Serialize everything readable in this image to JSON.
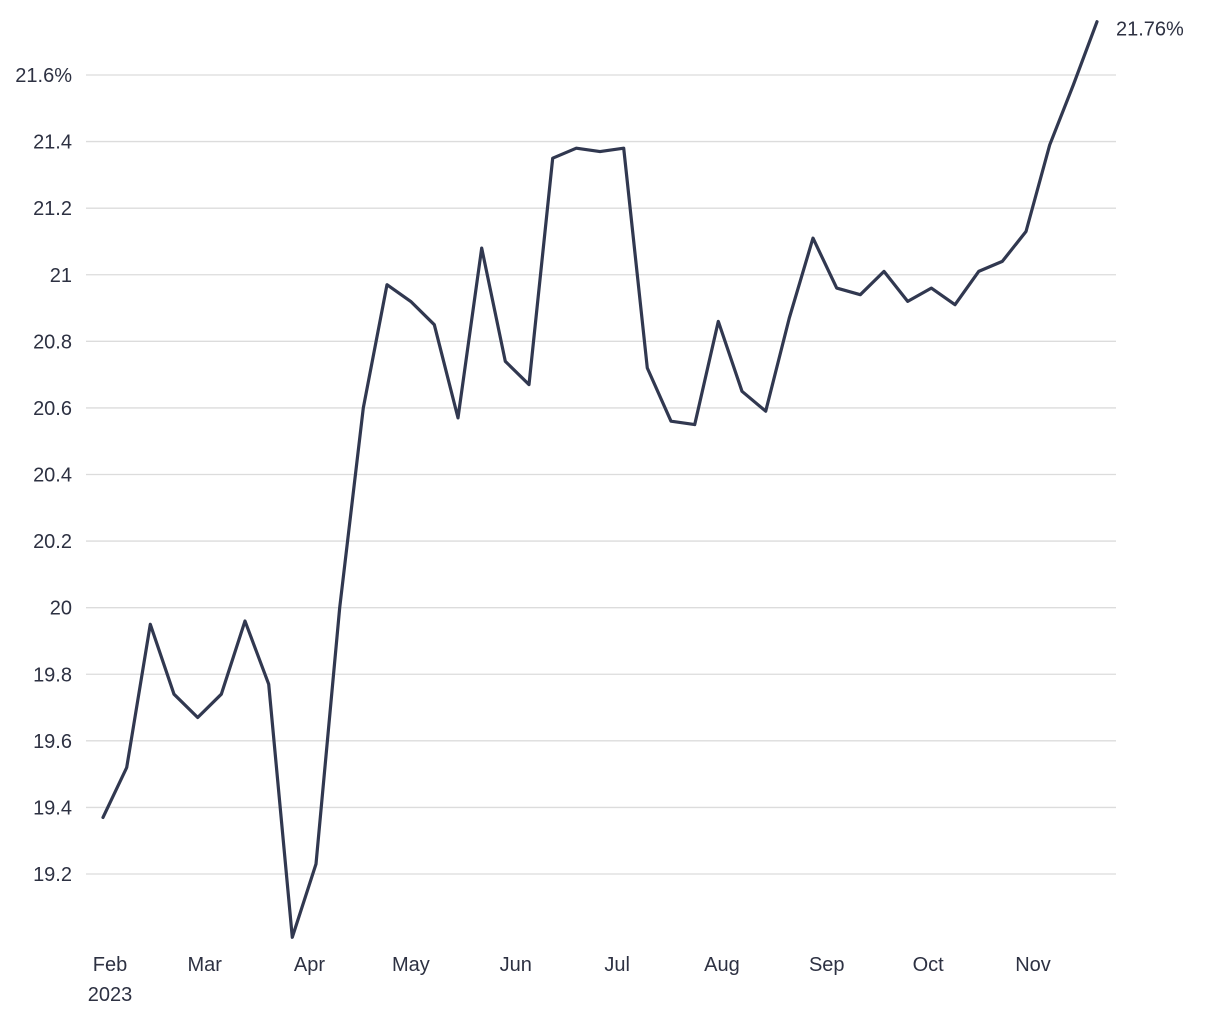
{
  "chart_data": {
    "type": "line",
    "title": "",
    "xlabel": "",
    "ylabel": "",
    "ylim": [
      19.0,
      21.8
    ],
    "xlim": [
      "2023-02-01",
      "2023-11-30"
    ],
    "grid": true,
    "y_ticks": [
      {
        "value": 19.2,
        "label": "19.2"
      },
      {
        "value": 19.4,
        "label": "19.4"
      },
      {
        "value": 19.6,
        "label": "19.6"
      },
      {
        "value": 19.8,
        "label": "19.8"
      },
      {
        "value": 20.0,
        "label": "20"
      },
      {
        "value": 20.2,
        "label": "20.2"
      },
      {
        "value": 20.4,
        "label": "20.4"
      },
      {
        "value": 20.6,
        "label": "20.6"
      },
      {
        "value": 20.8,
        "label": "20.8"
      },
      {
        "value": 21.0,
        "label": "21"
      },
      {
        "value": 21.2,
        "label": "21.2"
      },
      {
        "value": 21.4,
        "label": "21.4"
      },
      {
        "value": 21.6,
        "label": "21.6%"
      }
    ],
    "x_ticks": [
      {
        "date": "2023-02-01",
        "label": "Feb",
        "sublabel": "2023"
      },
      {
        "date": "2023-03-01",
        "label": "Mar"
      },
      {
        "date": "2023-04-01",
        "label": "Apr"
      },
      {
        "date": "2023-05-01",
        "label": "May"
      },
      {
        "date": "2023-06-01",
        "label": "Jun"
      },
      {
        "date": "2023-07-01",
        "label": "Jul"
      },
      {
        "date": "2023-08-01",
        "label": "Aug"
      },
      {
        "date": "2023-09-01",
        "label": "Sep"
      },
      {
        "date": "2023-10-01",
        "label": "Oct"
      },
      {
        "date": "2023-11-01",
        "label": "Nov"
      }
    ],
    "series": [
      {
        "color": "#313850",
        "end_label": "21.76%",
        "x": [
          "2023-02-01",
          "2023-02-08",
          "2023-02-15",
          "2023-02-22",
          "2023-03-01",
          "2023-03-08",
          "2023-03-15",
          "2023-03-22",
          "2023-03-29",
          "2023-04-05",
          "2023-04-12",
          "2023-04-19",
          "2023-04-26",
          "2023-05-03",
          "2023-05-10",
          "2023-05-17",
          "2023-05-24",
          "2023-05-31",
          "2023-06-07",
          "2023-06-14",
          "2023-06-21",
          "2023-06-28",
          "2023-07-05",
          "2023-07-12",
          "2023-07-19",
          "2023-07-26",
          "2023-08-02",
          "2023-08-09",
          "2023-08-16",
          "2023-08-23",
          "2023-08-30",
          "2023-09-06",
          "2023-09-13",
          "2023-09-20",
          "2023-09-27",
          "2023-10-04",
          "2023-10-11",
          "2023-10-18",
          "2023-10-25",
          "2023-11-01",
          "2023-11-08",
          "2023-11-15",
          "2023-11-22"
        ],
        "values": [
          19.37,
          19.52,
          19.95,
          19.74,
          19.67,
          19.74,
          19.96,
          19.77,
          19.01,
          19.23,
          20.0,
          20.6,
          20.97,
          20.92,
          20.85,
          20.57,
          21.08,
          20.74,
          20.67,
          21.35,
          21.38,
          21.37,
          21.38,
          20.72,
          20.56,
          20.55,
          20.86,
          20.65,
          20.59,
          20.87,
          21.11,
          20.96,
          20.94,
          21.01,
          20.92,
          20.96,
          20.91,
          21.01,
          21.04,
          21.13,
          21.39,
          21.57,
          21.76
        ]
      }
    ]
  }
}
